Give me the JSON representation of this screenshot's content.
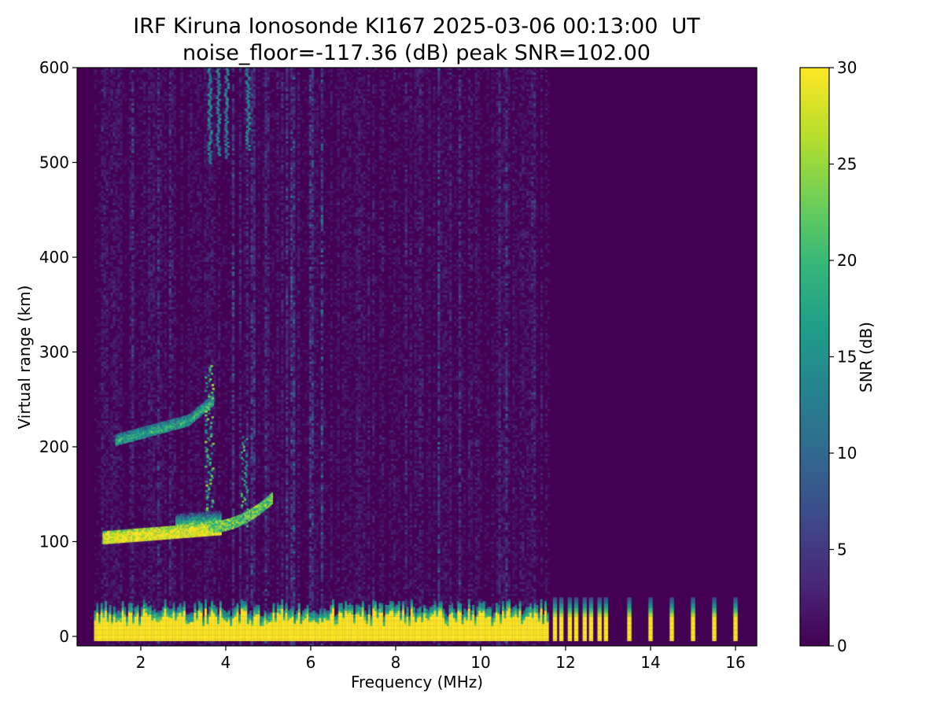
{
  "chart_data": {
    "type": "heatmap",
    "title": "IRF Kiruna Ionosonde KI167 2025-03-06 00:13:00  UT",
    "subtitle": "noise_floor=-117.36 (dB) peak SNR=102.00",
    "xlabel": "Frequency (MHz)",
    "ylabel": "Virtual range (km)",
    "xlim": [
      0.5,
      16.5
    ],
    "ylim": [
      -10,
      600
    ],
    "xticks": [
      "2",
      "4",
      "6",
      "8",
      "10",
      "12",
      "14",
      "16"
    ],
    "xtick_values": [
      2,
      4,
      6,
      8,
      10,
      12,
      14,
      16
    ],
    "yticks": [
      "0",
      "100",
      "200",
      "300",
      "400",
      "500",
      "600"
    ],
    "ytick_values": [
      0,
      100,
      200,
      300,
      400,
      500,
      600
    ],
    "colorbar": {
      "label": "SNR (dB)",
      "range": [
        0,
        30
      ],
      "ticks": [
        "0",
        "5",
        "10",
        "15",
        "20",
        "25",
        "30"
      ],
      "tick_values": [
        0,
        5,
        10,
        15,
        20,
        25,
        30
      ],
      "colormap": "viridis"
    },
    "features": [
      {
        "name": "E-layer echo",
        "freq_range_mhz": [
          1.1,
          3.9
        ],
        "virtual_range_km": [
          100,
          125
        ],
        "snr_db": 30
      },
      {
        "name": "Es/F1 trace",
        "freq_range_mhz": [
          3.5,
          5.1
        ],
        "virtual_range_km": [
          110,
          175
        ],
        "snr_db": 22
      },
      {
        "name": "F-layer trace",
        "freq_range_mhz": [
          1.4,
          3.7
        ],
        "virtual_range_km": [
          205,
          270
        ],
        "snr_db": 18
      },
      {
        "name": "multi-hop echoes",
        "freq_range_mhz": [
          3.5,
          4.5
        ],
        "virtual_range_km": [
          490,
          600
        ],
        "snr_db": 12
      },
      {
        "name": "ground clutter",
        "freq_range_mhz": [
          0.9,
          11.6
        ],
        "virtual_range_km": [
          -5,
          30
        ],
        "snr_db": 30
      },
      {
        "name": "interference spikes",
        "freq_mhz": [
          11.75,
          11.9,
          12.1,
          12.25,
          12.45,
          12.6,
          12.8,
          12.95,
          13.5,
          14.0,
          14.5,
          15.0,
          15.5,
          16.0
        ],
        "virtual_range_km": [
          -5,
          40
        ],
        "snr_db": 30
      }
    ]
  }
}
